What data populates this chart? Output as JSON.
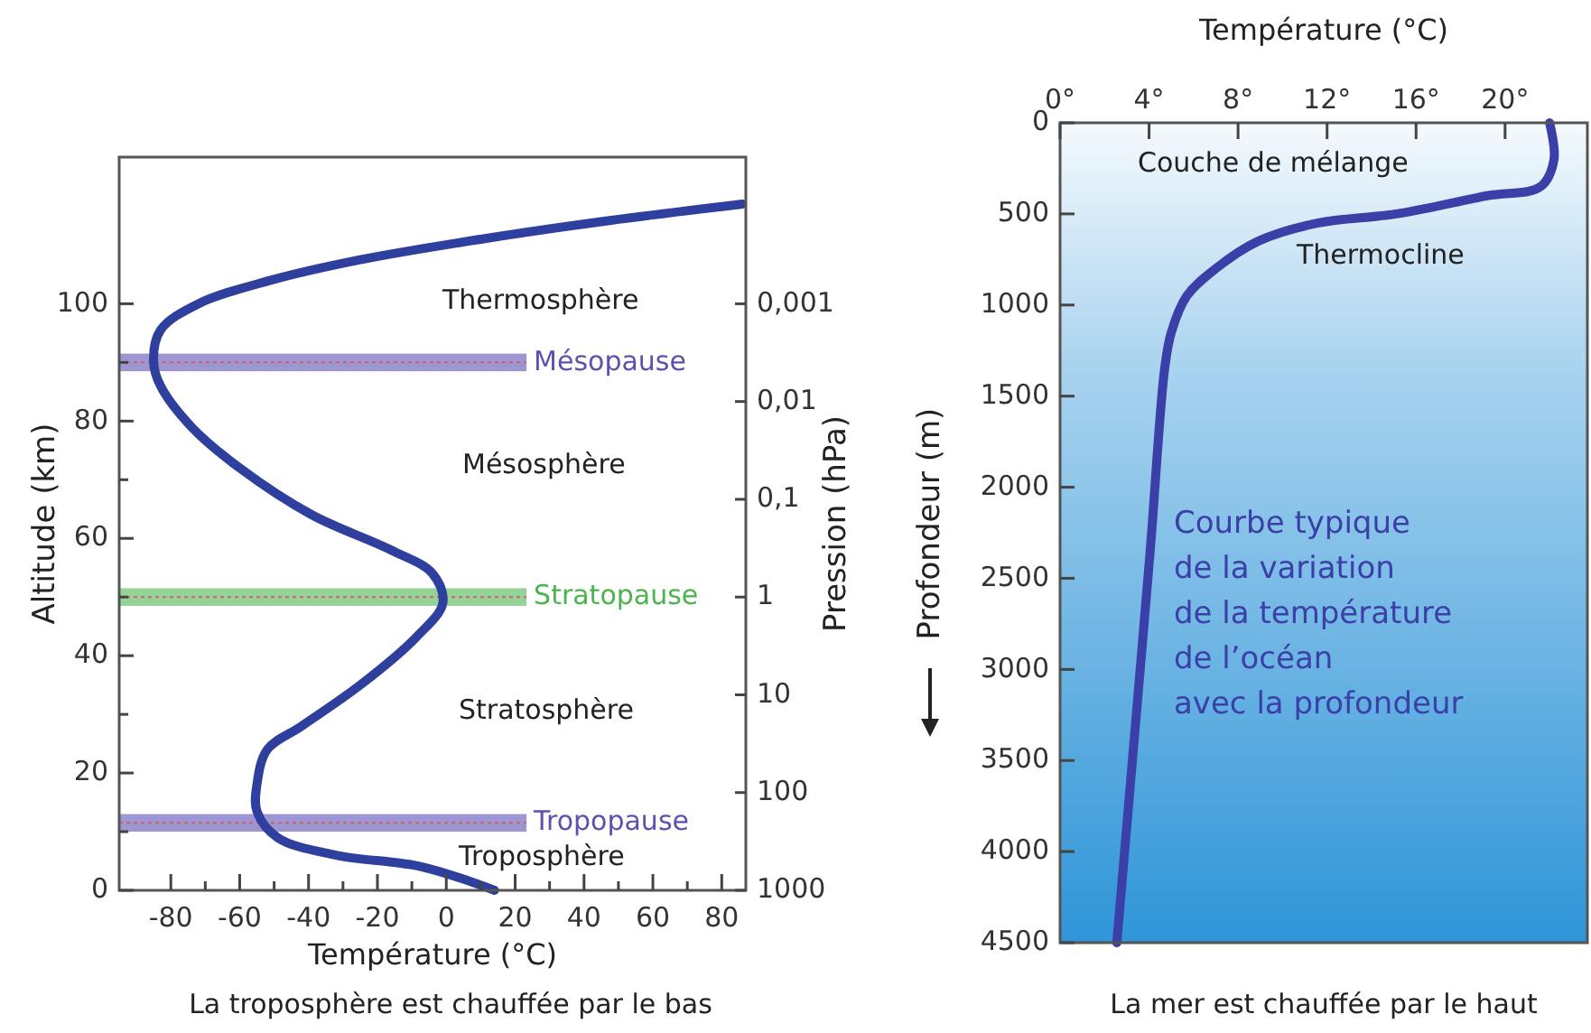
{
  "chart_data": [
    {
      "type": "line",
      "xlabel": "Température (°C)",
      "ylabel": "Altitude (km)",
      "y2label": "Pression (hPa)",
      "xlim": [
        -95,
        87
      ],
      "ylim": [
        0,
        125
      ],
      "y2lim": [
        1000,
        3.16e-05
      ],
      "log": "y2",
      "xticks": [
        -80,
        {
          "value": -70,
          "label": null
        },
        -60,
        {
          "value": -50,
          "label": null
        },
        -40,
        {
          "value": -30,
          "label": null
        },
        -20,
        {
          "value": -10,
          "label": null
        },
        0,
        {
          "value": 10,
          "label": null
        },
        20,
        {
          "value": 30,
          "label": null
        },
        40,
        {
          "value": 50,
          "label": null
        },
        60,
        {
          "value": 70,
          "label": null
        },
        80
      ],
      "yticks": [
        0,
        {
          "value": 10,
          "label": null
        },
        20,
        {
          "value": 30,
          "label": null
        },
        40,
        {
          "value": 50,
          "label": null
        },
        60,
        {
          "value": 70,
          "label": null
        },
        80,
        {
          "value": 90,
          "label": null
        },
        100
      ],
      "y2ticks": [
        {
          "value": 1000,
          "label": "1000"
        },
        {
          "value": 100,
          "label": "100"
        },
        {
          "value": 10,
          "label": "10"
        },
        {
          "value": 1,
          "label": "1"
        },
        {
          "value": 0.1,
          "label": "0,1"
        },
        {
          "value": 0.01,
          "label": "0,01"
        },
        {
          "value": 0.001,
          "label": "0,001"
        }
      ],
      "series": [
        {
          "color": "#2e3f9e",
          "x": [
            14,
            -7,
            -32,
            -49,
            -55,
            -55,
            -52,
            -42,
            -25,
            -9,
            -1,
            -4,
            -16,
            -39,
            -60,
            -74,
            -83,
            -85,
            -83,
            -72,
            -51,
            -25,
            10,
            45,
            86
          ],
          "values": [
            0,
            4,
            6,
            9,
            13.5,
            18,
            24,
            28,
            35,
            43,
            49,
            54,
            58,
            64,
            72,
            79,
            86,
            90,
            95.5,
            100,
            104,
            107.5,
            111,
            114,
            117
          ]
        }
      ],
      "bands": [
        {
          "axis": "y",
          "from": 88.5,
          "to": 91.5,
          "label": "Mésopause",
          "color": "#5e50b0"
        },
        {
          "axis": "y",
          "from": 48.5,
          "to": 51.5,
          "label": "Stratopause",
          "color": "#4cb44e"
        },
        {
          "axis": "y",
          "from": 10,
          "to": 13,
          "label": "Tropopause",
          "color": "#5e50b0"
        }
      ],
      "annotations": [
        "Thermosphère",
        "Mésosphère",
        "Stratosphère",
        "Troposphère",
        "La troposphère est chauffée par le bas"
      ]
    },
    {
      "type": "line",
      "xlabel": "Température (°C)",
      "ylabel": "Profondeur (m)",
      "xlim": [
        0,
        23.7
      ],
      "ylim": [
        4500,
        0
      ],
      "xticks": [
        {
          "value": 0,
          "label": "0°"
        },
        {
          "value": 4,
          "label": "4°"
        },
        {
          "value": 8,
          "label": "8°"
        },
        {
          "value": 12,
          "label": "12°"
        },
        {
          "value": 16,
          "label": "16°"
        },
        {
          "value": 20,
          "label": "20°"
        }
      ],
      "yticks": [
        0,
        500,
        1000,
        1500,
        2000,
        2500,
        3000,
        3500,
        4000,
        4500
      ],
      "series": [
        {
          "color": "#3b3fa8",
          "x": [
            22,
            22.2,
            21.6,
            19.2,
            15.1,
            11.6,
            8.9,
            7,
            5.7,
            5,
            4.7,
            4.05,
            3.25,
            2.55
          ],
          "values": [
            0,
            200,
            350,
            400,
            500,
            550,
            650,
            800,
            950,
            1150,
            1350,
            2350,
            3500,
            4500
          ]
        }
      ],
      "annotations": [
        "Couche de mélange",
        "Thermocline",
        "Courbe typique\nde la variation\nde la température\nde l’océan\navec la profondeur",
        "La mer est chauffée par le haut"
      ]
    }
  ]
}
